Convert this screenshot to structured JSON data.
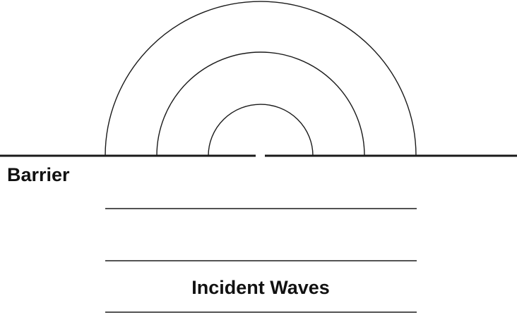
{
  "labels": {
    "barrier": "Barrier",
    "incident_waves": "Incident Waves"
  },
  "colors": {
    "line": "#1a1a1a",
    "background": "#ffffff"
  }
}
